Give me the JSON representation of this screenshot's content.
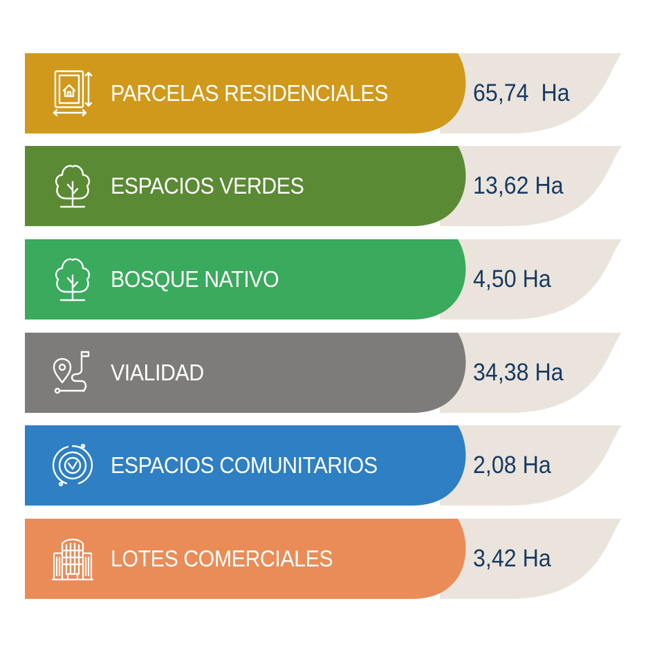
{
  "colors": {
    "value_panel": "#ebe4dc",
    "value_text": "#163a63",
    "label_text": "#ffffff"
  },
  "rows": [
    {
      "label": "PARCELAS RESIDENCIALES",
      "value": "65,74  Ha",
      "color": "#d0991c",
      "icon": "house-plan-icon"
    },
    {
      "label": "ESPACIOS VERDES",
      "value": "13,62 Ha",
      "color": "#5b8a35",
      "icon": "tree-icon"
    },
    {
      "label": "BOSQUE NATIVO",
      "value": "4,50 Ha",
      "color": "#3aaa5c",
      "icon": "tree-icon"
    },
    {
      "label": "VIALIDAD",
      "value": "34,38 Ha",
      "color": "#7d7c7a",
      "icon": "route-pin-icon"
    },
    {
      "label": "ESPACIOS COMUNITARIOS",
      "value": "2,08 Ha",
      "color": "#2e7fc3",
      "icon": "community-circle-icon"
    },
    {
      "label": "LOTES COMERCIALES",
      "value": "3,42 Ha",
      "color": "#ea8c58",
      "icon": "commercial-building-icon"
    }
  ]
}
